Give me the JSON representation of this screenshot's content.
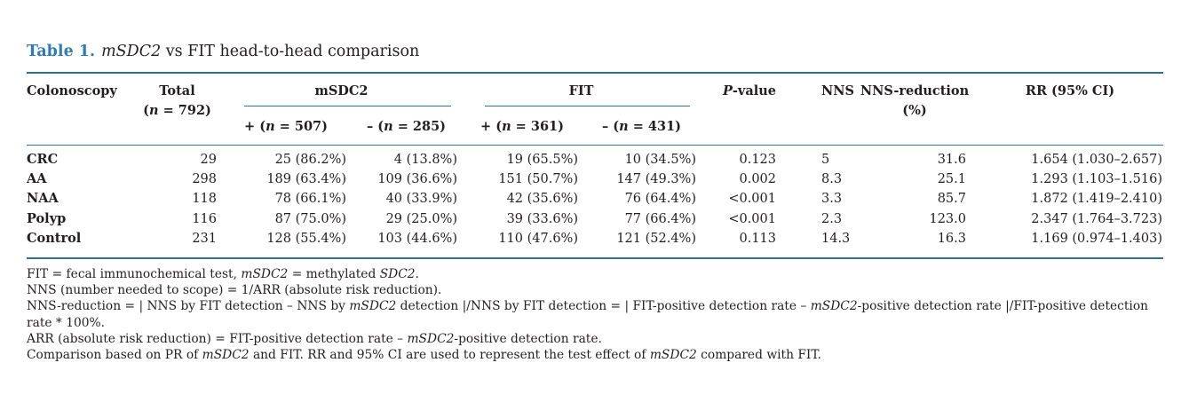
{
  "colors": {
    "accent_blue": "#2e7cb4",
    "rule_blue": "#31708f",
    "text": "#231f20"
  },
  "title": {
    "label": "Table 1.",
    "segments": [
      {
        "t": "mSDC2",
        "i": true
      },
      {
        "t": " vs FIT head-to-head comparison"
      }
    ]
  },
  "table": {
    "headers": {
      "colonoscopy": "Colonoscopy",
      "total_line1": "Total",
      "total_line2": [
        {
          "t": "("
        },
        {
          "t": "n",
          "i": true
        },
        {
          "t": " = 792)"
        }
      ],
      "msdc2_group": "mSDC2",
      "fit_group": "FIT",
      "p_value": [
        {
          "t": "P",
          "i": true
        },
        {
          "t": "-value"
        }
      ],
      "nns": "NNS",
      "nns_reduction_line1": "NNS-reduction",
      "nns_reduction_line2": "(%)",
      "rr": "RR (95% CI)"
    },
    "subheaders": {
      "msdc2_pos": [
        {
          "t": "+ ("
        },
        {
          "t": "n",
          "i": true
        },
        {
          "t": " = 507)"
        }
      ],
      "msdc2_neg": [
        {
          "t": "– ("
        },
        {
          "t": "n",
          "i": true
        },
        {
          "t": " = 285)"
        }
      ],
      "fit_pos": [
        {
          "t": "+ ("
        },
        {
          "t": "n",
          "i": true
        },
        {
          "t": " = 361)"
        }
      ],
      "fit_neg": [
        {
          "t": "– ("
        },
        {
          "t": "n",
          "i": true
        },
        {
          "t": " = 431)"
        }
      ]
    },
    "rows": [
      {
        "label": "CRC",
        "total": "29",
        "msdc2_pos": "25 (86.2%)",
        "msdc2_neg": "4 (13.8%)",
        "fit_pos": "19 (65.5%)",
        "fit_neg": "10 (34.5%)",
        "p": "0.123",
        "nns": "5",
        "nns_reduction": "31.6",
        "rr": "1.654 (1.030–2.657)"
      },
      {
        "label": "AA",
        "total": "298",
        "msdc2_pos": "189 (63.4%)",
        "msdc2_neg": "109 (36.6%)",
        "fit_pos": "151 (50.7%)",
        "fit_neg": "147 (49.3%)",
        "p": "0.002",
        "nns": "8.3",
        "nns_reduction": "25.1",
        "rr": "1.293 (1.103–1.516)"
      },
      {
        "label": "NAA",
        "total": "118",
        "msdc2_pos": "78 (66.1%)",
        "msdc2_neg": "40 (33.9%)",
        "fit_pos": "42 (35.6%)",
        "fit_neg": "76 (64.4%)",
        "p": "<0.001",
        "nns": "3.3",
        "nns_reduction": "85.7",
        "rr": "1.872 (1.419–2.410)"
      },
      {
        "label": "Polyp",
        "total": "116",
        "msdc2_pos": "87 (75.0%)",
        "msdc2_neg": "29 (25.0%)",
        "fit_pos": "39 (33.6%)",
        "fit_neg": "77 (66.4%)",
        "p": "<0.001",
        "nns": "2.3",
        "nns_reduction": "123.0",
        "rr": "2.347 (1.764–3.723)"
      },
      {
        "label": "Control",
        "total": "231",
        "msdc2_pos": "128 (55.4%)",
        "msdc2_neg": "103 (44.6%)",
        "fit_pos": "110 (47.6%)",
        "fit_neg": "121 (52.4%)",
        "p": "0.113",
        "nns": "14.3",
        "nns_reduction": "16.3",
        "rr": "1.169 (0.974–1.403)"
      }
    ]
  },
  "footnotes": [
    [
      {
        "t": "FIT = fecal immunochemical test, "
      },
      {
        "t": "mSDC2",
        "i": true
      },
      {
        "t": " = methylated "
      },
      {
        "t": "SDC2",
        "i": true
      },
      {
        "t": "."
      }
    ],
    [
      {
        "t": "NNS (number needed to scope) = 1/ARR (absolute risk reduction)."
      }
    ],
    [
      {
        "t": "NNS-reduction = | NNS by FIT detection – NNS by "
      },
      {
        "t": "mSDC2",
        "i": true
      },
      {
        "t": " detection |/NNS by FIT detection = | FIT-positive detection rate – "
      },
      {
        "t": "mSDC2",
        "i": true
      },
      {
        "t": "-positive detection rate |/FIT-positive detection rate * 100%."
      }
    ],
    [
      {
        "t": "ARR (absolute risk reduction) = FIT-positive detection rate – "
      },
      {
        "t": "mSDC2",
        "i": true
      },
      {
        "t": "-positive detection rate."
      }
    ],
    [
      {
        "t": "Comparison based on PR of "
      },
      {
        "t": "mSDC2",
        "i": true
      },
      {
        "t": " and FIT. RR and 95% CI are used to represent the test effect of "
      },
      {
        "t": "mSDC2",
        "i": true
      },
      {
        "t": " compared with FIT."
      }
    ]
  ]
}
